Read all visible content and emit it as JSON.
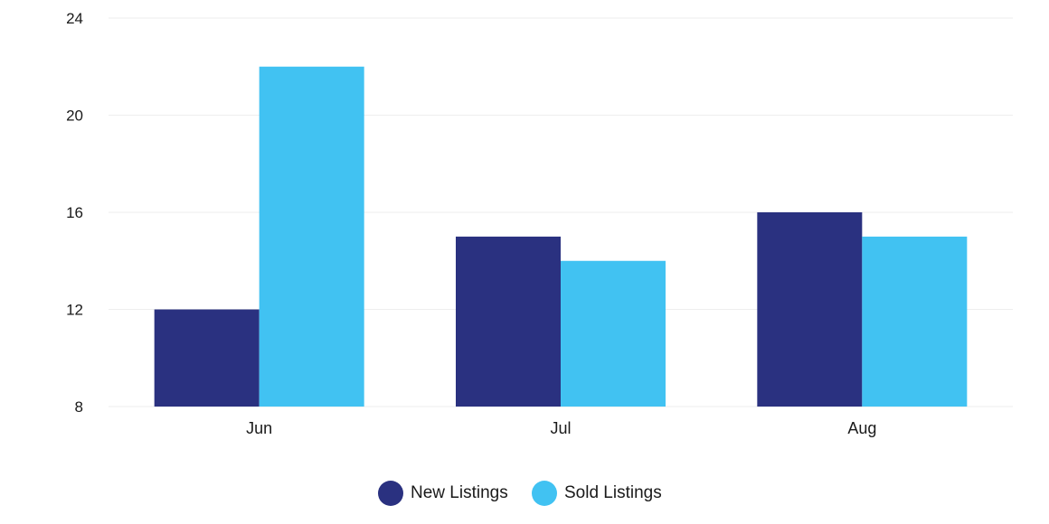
{
  "chart_data": {
    "type": "bar",
    "categories": [
      "Jun",
      "Jul",
      "Aug"
    ],
    "series": [
      {
        "name": "New Listings",
        "values": [
          12,
          15,
          16
        ],
        "color": "#2a3180"
      },
      {
        "name": "Sold Listings",
        "values": [
          22,
          14,
          15
        ],
        "color": "#41c2f2"
      }
    ],
    "ylim": [
      8,
      24
    ],
    "yticks": [
      8,
      12,
      16,
      20,
      24
    ],
    "grid": true,
    "legend_position": "bottom-center"
  }
}
